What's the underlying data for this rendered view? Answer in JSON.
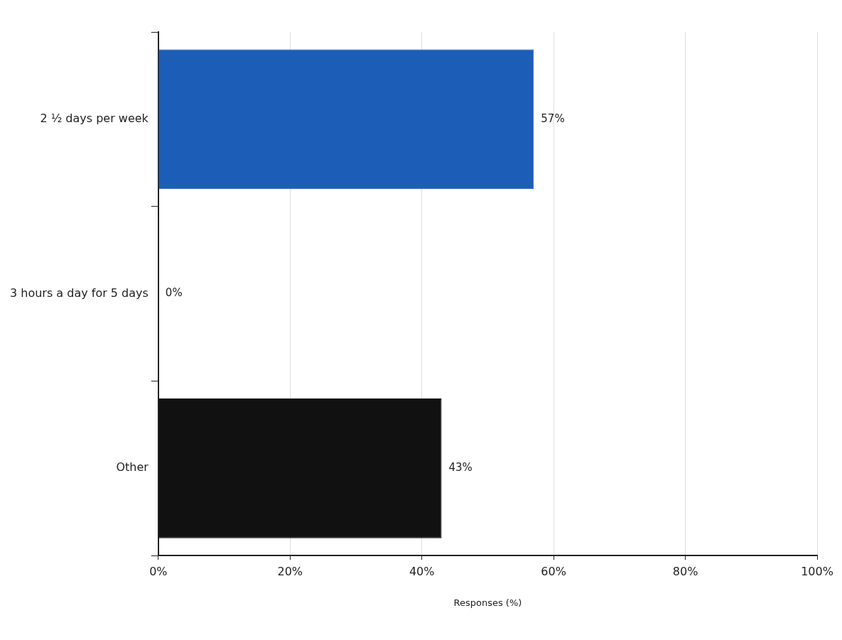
{
  "chart_data": {
    "type": "bar",
    "orientation": "horizontal",
    "xlabel": "Responses (%)",
    "categories": [
      "2 ½ days per week",
      "3 hours a day for 5 days",
      "Other"
    ],
    "values": [
      57,
      0,
      43
    ],
    "colors": [
      "#1c5db8",
      "#1c5db8",
      "#111111"
    ],
    "value_labels": [
      "57%",
      "0%",
      "43%"
    ],
    "xlim": [
      0,
      100
    ],
    "xticks": [
      {
        "value": 0,
        "label": "0%"
      },
      {
        "value": 20,
        "label": "20%"
      },
      {
        "value": 40,
        "label": "40%"
      },
      {
        "value": 60,
        "label": "60%"
      },
      {
        "value": 80,
        "label": "80%"
      },
      {
        "value": 100,
        "label": "100%"
      }
    ],
    "grid": "x",
    "legend": false
  }
}
